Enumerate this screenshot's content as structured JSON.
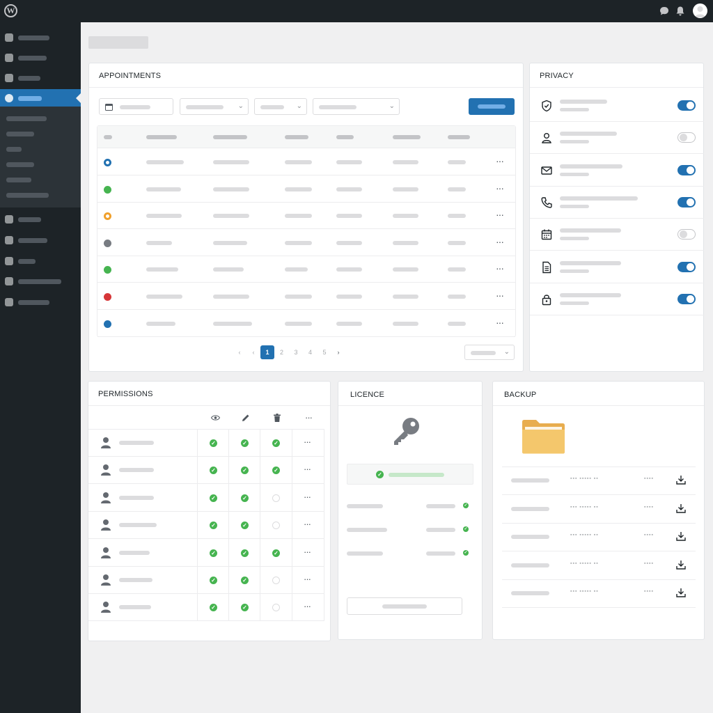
{
  "app": {
    "logo_glyph": "W"
  },
  "colors": {
    "accent": "#2271b1",
    "sidebar_bg": "#1d2327",
    "success": "#46b450",
    "warning": "#f0a02c",
    "danger": "#d63638",
    "muted": "#787c82"
  },
  "topbar": {
    "icons": [
      "wordpress-logo-icon",
      "comments-icon",
      "notifications-icon",
      "user-avatar"
    ]
  },
  "appointments": {
    "title": "APPOINTMENTS",
    "rows": [
      {
        "status_color": "#2271b1",
        "status": "ring"
      },
      {
        "status_color": "#46b450",
        "status": "solid"
      },
      {
        "status_color": "#f0a02c",
        "status": "ring"
      },
      {
        "status_color": "#787c82",
        "status": "solid"
      },
      {
        "status_color": "#46b450",
        "status": "solid"
      },
      {
        "status_color": "#d63638",
        "status": "solid"
      },
      {
        "status_color": "#2271b1",
        "status": "solid"
      }
    ],
    "row_actions": "···",
    "pagination": {
      "prev_first": "‹",
      "prev": "‹",
      "pages": [
        "1",
        "2",
        "3",
        "4",
        "5"
      ],
      "current": "1",
      "next": "›",
      "next_last": "›"
    }
  },
  "privacy": {
    "title": "PRIVACY",
    "items": [
      {
        "icon": "shield-icon",
        "enabled": true
      },
      {
        "icon": "user-icon",
        "enabled": false
      },
      {
        "icon": "mail-icon",
        "enabled": true
      },
      {
        "icon": "phone-icon",
        "enabled": true
      },
      {
        "icon": "calendar-icon",
        "enabled": false
      },
      {
        "icon": "document-icon",
        "enabled": true
      },
      {
        "icon": "lock-icon",
        "enabled": true
      }
    ]
  },
  "permissions": {
    "title": "PERMISSIONS",
    "columns": [
      "eye-icon",
      "pencil-icon",
      "trash-icon",
      "more-icon"
    ],
    "more_glyph": "···",
    "check_glyph": "✓",
    "rows": [
      {
        "view": true,
        "edit": true,
        "delete": true
      },
      {
        "view": true,
        "edit": true,
        "delete": true
      },
      {
        "view": true,
        "edit": true,
        "delete": false
      },
      {
        "view": true,
        "edit": true,
        "delete": false
      },
      {
        "view": true,
        "edit": true,
        "delete": true
      },
      {
        "view": true,
        "edit": true,
        "delete": false
      },
      {
        "view": true,
        "edit": true,
        "delete": false
      }
    ]
  },
  "licence": {
    "title": "LICENCE",
    "status": "active",
    "check_glyph": "✓",
    "icon": "key-icon"
  },
  "backup": {
    "title": "BACKUP",
    "icon": "folder-icon",
    "rows": [
      {
        "date": "▪▪▪ ▪▪▪▪▪ ▪▪",
        "size": "▪▪▪▪"
      },
      {
        "date": "▪▪▪ ▪▪▪▪▪ ▪▪",
        "size": "▪▪▪▪"
      },
      {
        "date": "▪▪▪ ▪▪▪▪▪ ▪▪",
        "size": "▪▪▪▪"
      },
      {
        "date": "▪▪▪ ▪▪▪▪▪ ▪▪",
        "size": "▪▪▪▪"
      },
      {
        "date": "▪▪▪ ▪▪▪▪▪ ▪▪",
        "size": "▪▪▪▪"
      }
    ]
  }
}
